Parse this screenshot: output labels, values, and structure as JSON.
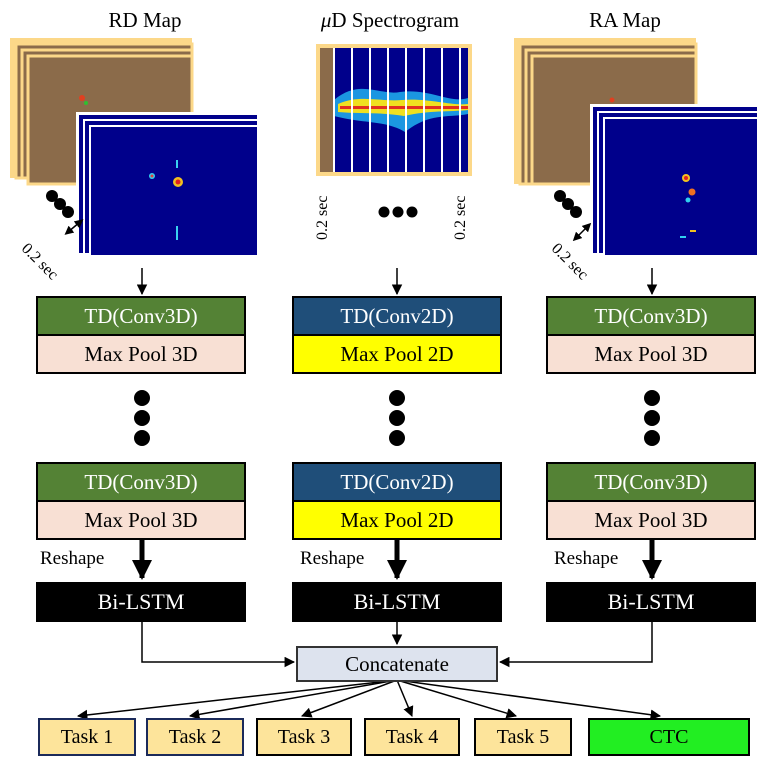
{
  "titles": {
    "rd": "RD Map",
    "spec_italic": "μ",
    "spec_rest": "D Spectrogram",
    "ra": "RA Map"
  },
  "time_label": "0.2 sec",
  "columns": {
    "left": {
      "conv": "TD(Conv3D)",
      "pool": "Max Pool 3D",
      "conv2": "TD(Conv3D)",
      "pool2": "Max Pool 3D",
      "reshape": "Reshape",
      "lstm": "Bi-LSTM"
    },
    "middle": {
      "conv": "TD(Conv2D)",
      "pool": "Max Pool 2D",
      "conv2": "TD(Conv2D)",
      "pool2": "Max Pool 2D",
      "reshape": "Reshape",
      "lstm": "Bi-LSTM"
    },
    "right": {
      "conv": "TD(Conv3D)",
      "pool": "Max Pool 3D",
      "conv2": "TD(Conv3D)",
      "pool2": "Max Pool 3D",
      "reshape": "Reshape",
      "lstm": "Bi-LSTM"
    }
  },
  "concat": "Concatenate",
  "outputs": [
    "Task 1",
    "Task 2",
    "Task 3",
    "Task 4",
    "Task 5",
    "CTC"
  ],
  "colors": {
    "conv3d": "#548235",
    "conv2d": "#1f4e79",
    "pool3d": "#f8e0d4",
    "pool2d": "#ffff00",
    "task": "#fde49b",
    "ctc": "#22ee22",
    "map_bg": "#00008b",
    "frame_bg": "#8b6b4a",
    "frame_border": "#fcd889"
  }
}
